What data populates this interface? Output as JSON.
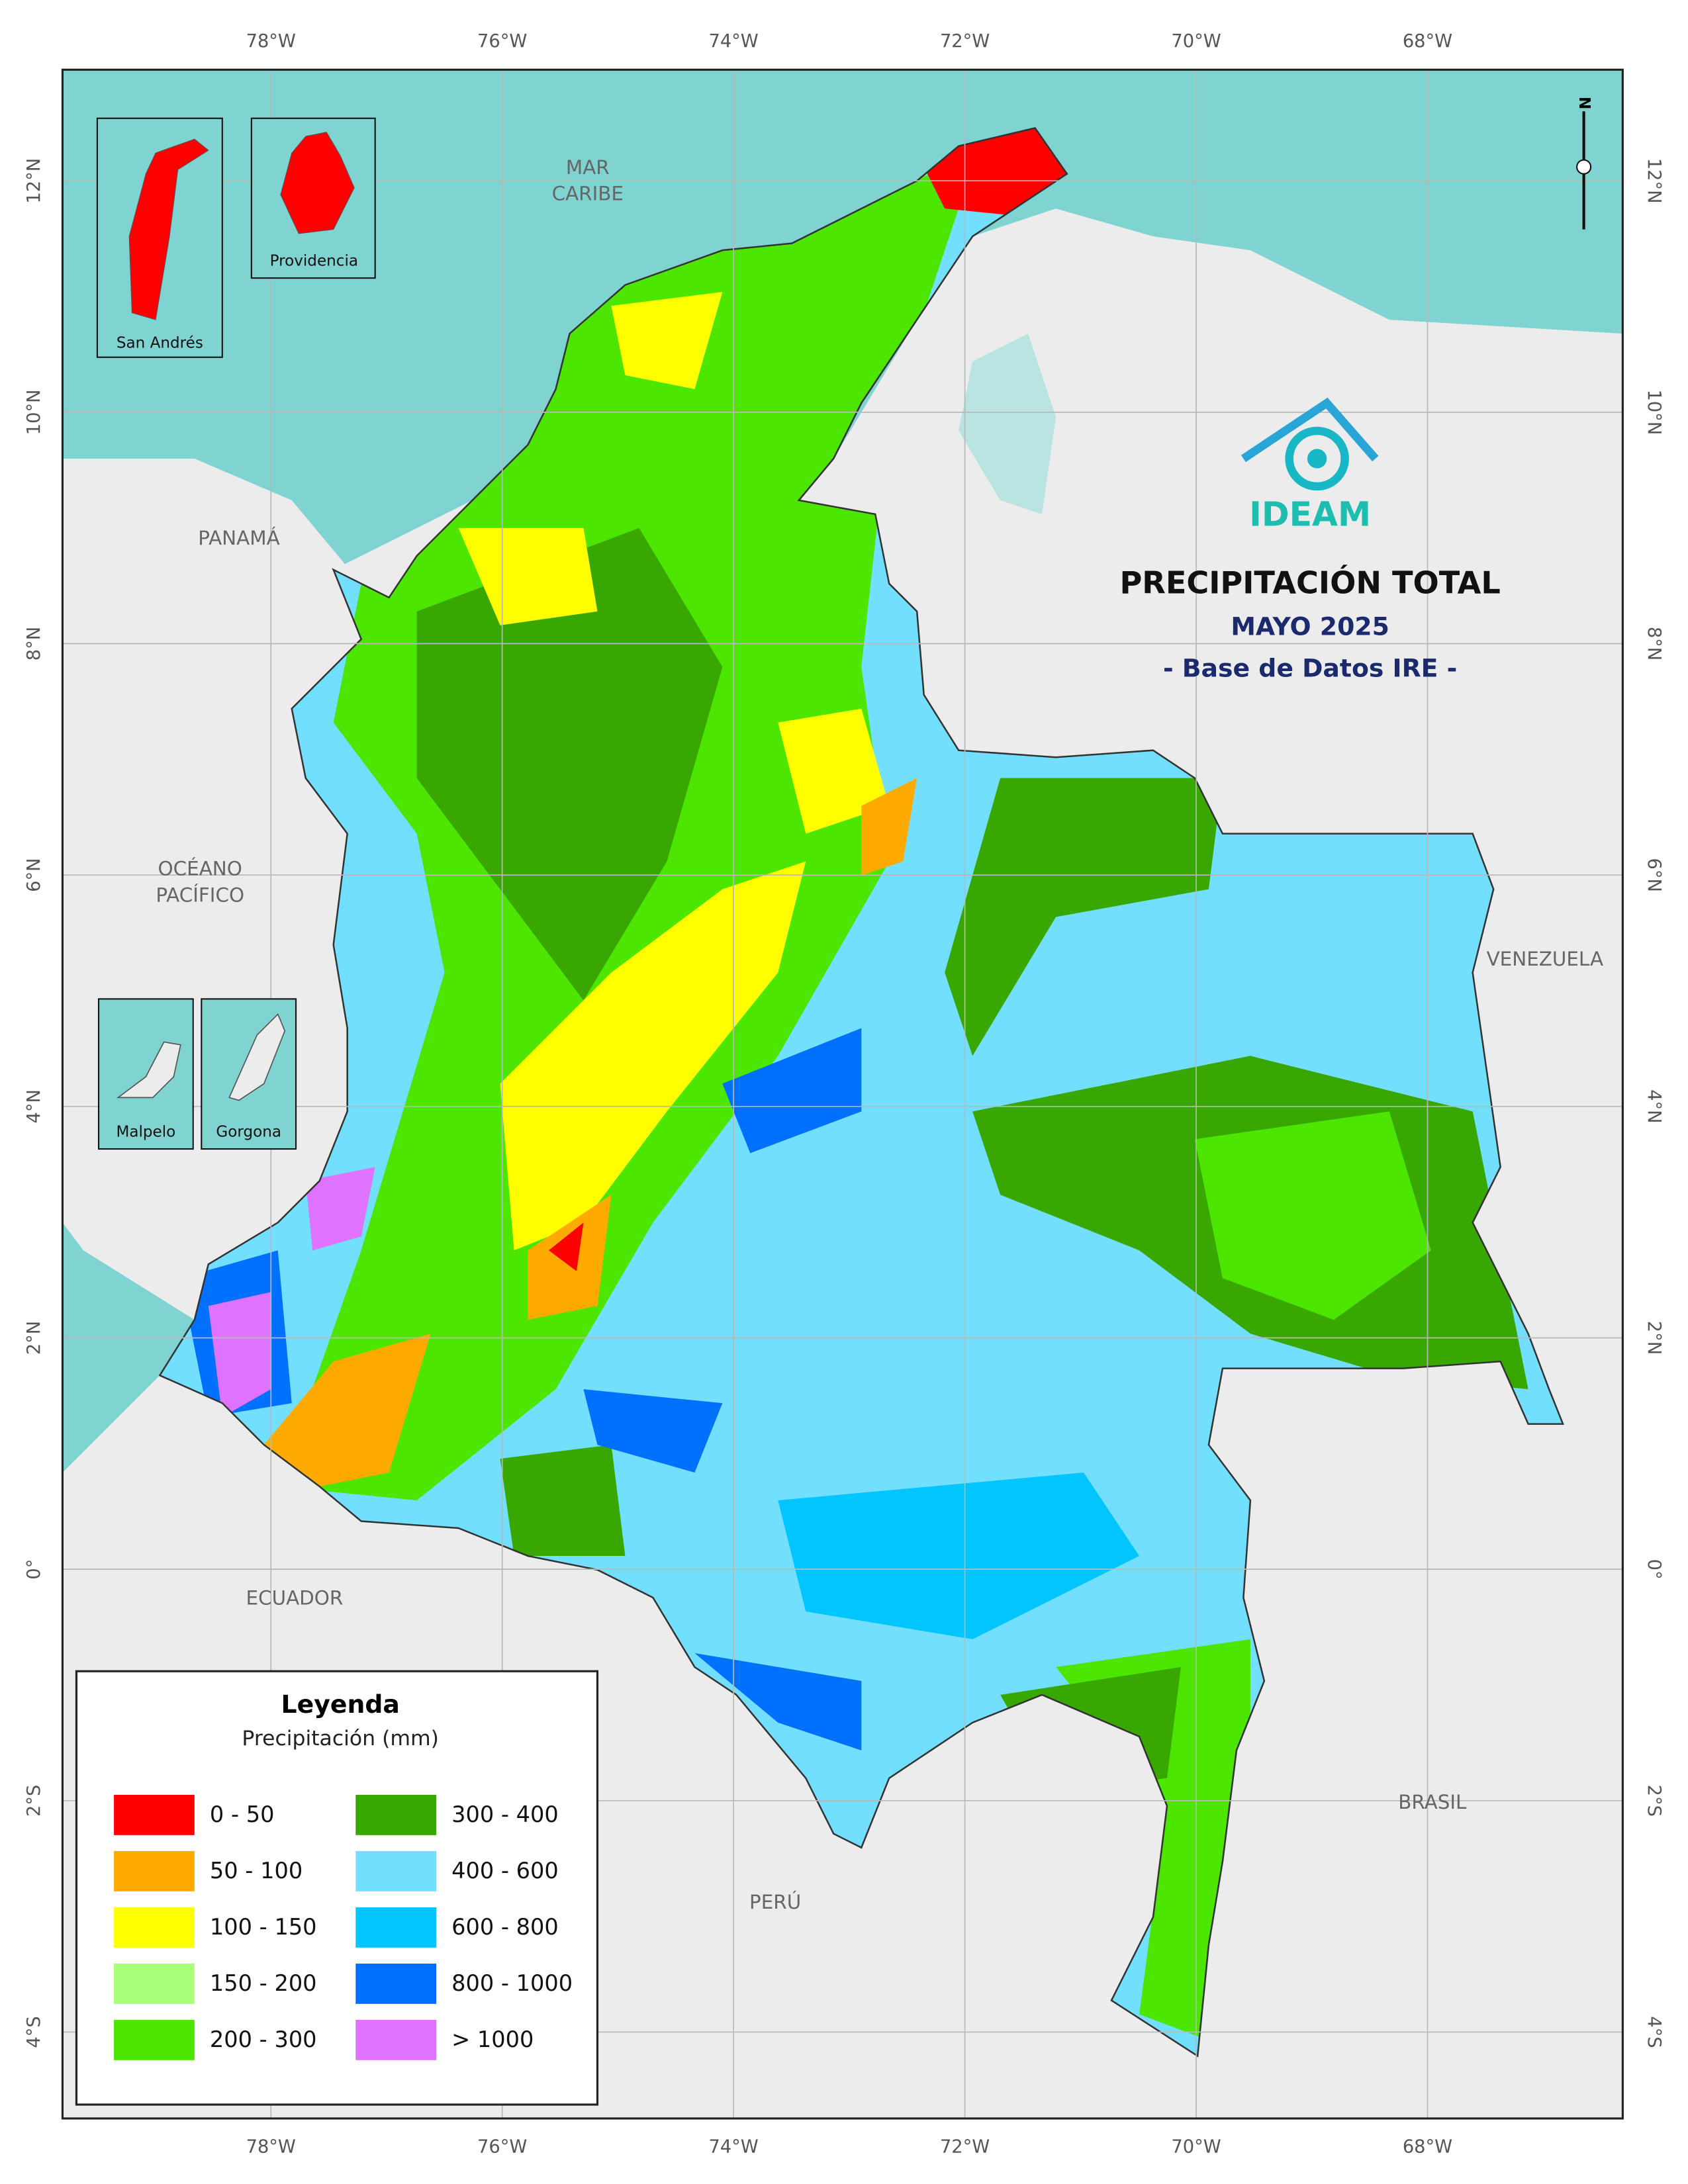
{
  "graticule": {
    "longitude_labels": [
      "78°W",
      "76°W",
      "74°W",
      "72°W",
      "70°W",
      "68°W"
    ],
    "latitude_labels": [
      "12°N",
      "10°N",
      "8°N",
      "6°N",
      "4°N",
      "2°N",
      "0°",
      "2°S",
      "4°S"
    ]
  },
  "title": {
    "heading": "PRECIPITACIÓN TOTAL",
    "period": "MAYO 2025",
    "source": "- Base de Datos IRE -",
    "logo": "IDEAM"
  },
  "places": {
    "mar_caribe": [
      "MAR",
      "CARIBE"
    ],
    "oceano_pacifico": [
      "OCÉANO",
      "PACÍFICO"
    ],
    "panama": "PANAMÁ",
    "venezuela": "VENEZUELA",
    "ecuador": "ECUADOR",
    "brasil": "BRASIL",
    "peru": "PERÚ"
  },
  "insets": {
    "san_andres": "San Andrés",
    "providencia": "Providencia",
    "malpelo": "Malpelo",
    "gorgona": "Gorgona"
  },
  "north_arrow": "N",
  "legend": {
    "title": "Leyenda",
    "subtitle": "Precipitación (mm)",
    "items": [
      {
        "label": "0 - 50",
        "color": "#ff0000"
      },
      {
        "label": "50 - 100",
        "color": "#ffaa00"
      },
      {
        "label": "100 - 150",
        "color": "#ffff00"
      },
      {
        "label": "150 - 200",
        "color": "#a8ff78"
      },
      {
        "label": "200 - 300",
        "color": "#4ce600"
      },
      {
        "label": "300 - 400",
        "color": "#38a800"
      },
      {
        "label": "400 - 600",
        "color": "#73dfff"
      },
      {
        "label": "600 - 800",
        "color": "#00c5ff"
      },
      {
        "label": "800 - 1000",
        "color": "#0070ff"
      },
      {
        "label": "> 1000",
        "color": "#df73ff"
      }
    ]
  }
}
